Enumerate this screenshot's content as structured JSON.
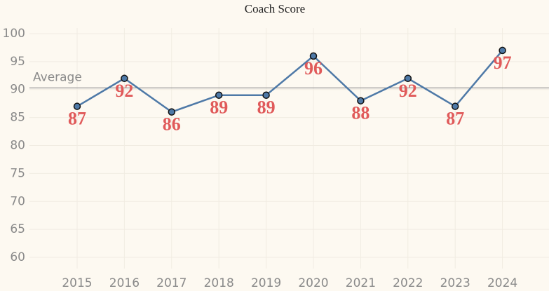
{
  "chart_data": {
    "type": "line",
    "title": "Coach Score",
    "categories": [
      "2015",
      "2016",
      "2017",
      "2018",
      "2019",
      "2020",
      "2021",
      "2022",
      "2023",
      "2024"
    ],
    "series": [
      {
        "name": "Coach Score",
        "color": "#4e79a7",
        "values": [
          87,
          92,
          86,
          89,
          89,
          96,
          88,
          92,
          87,
          97
        ]
      }
    ],
    "ylim": [
      58,
      101
    ],
    "yticks": [
      60,
      65,
      70,
      75,
      80,
      85,
      90,
      95,
      100
    ],
    "grid": true,
    "reference_line": {
      "label": "Average",
      "value": 90.3
    }
  }
}
